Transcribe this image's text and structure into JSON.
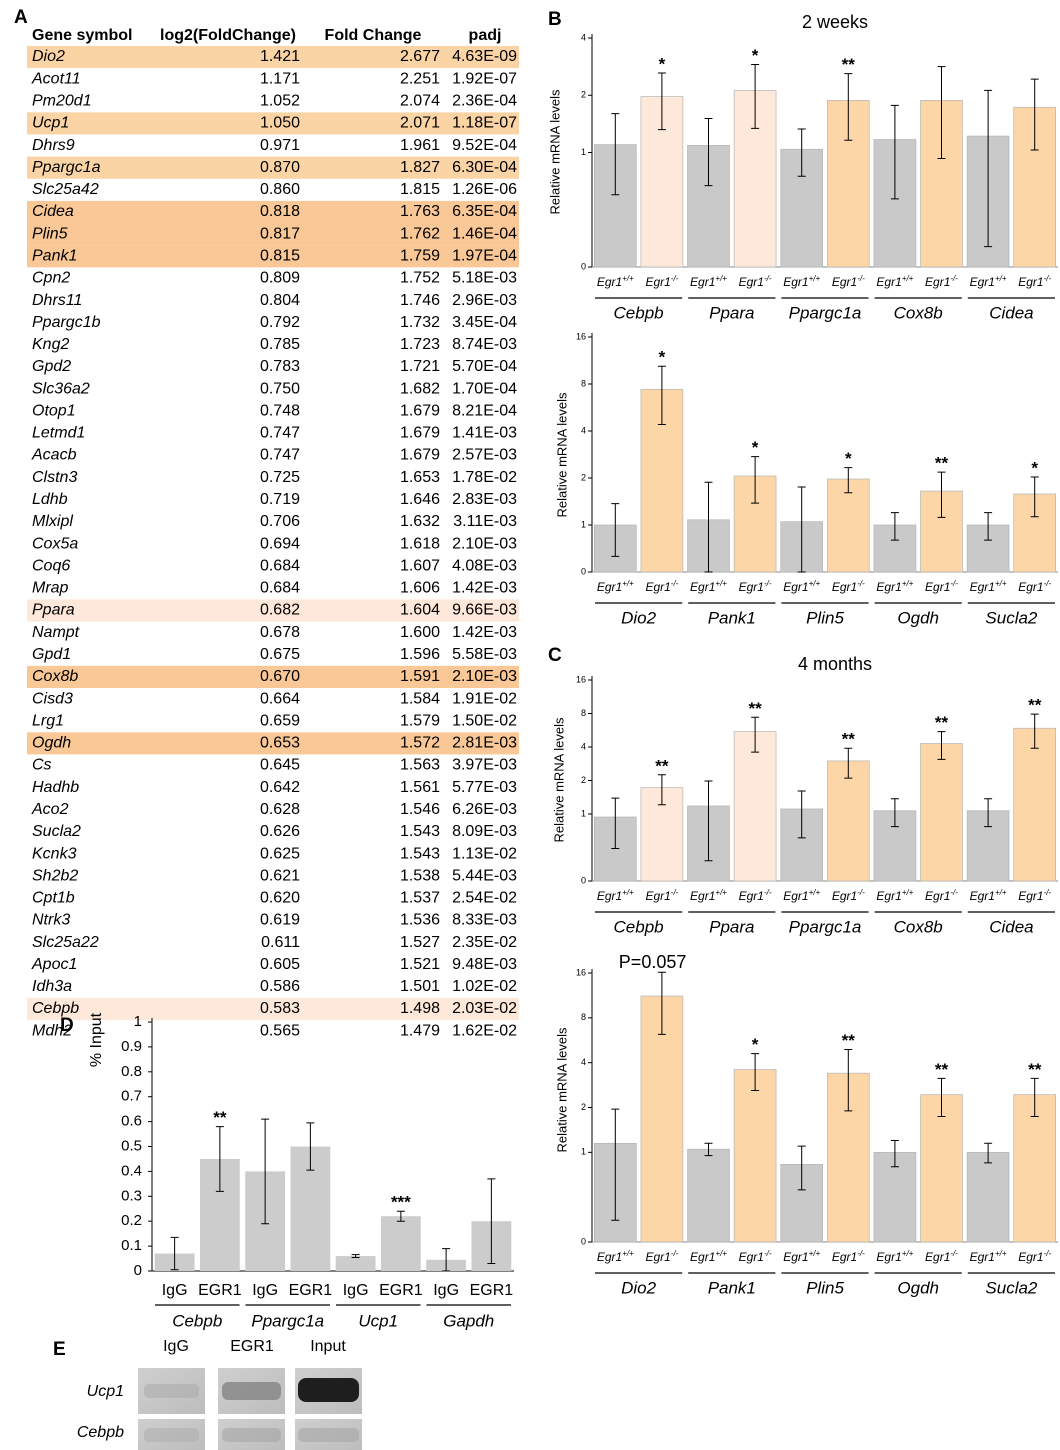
{
  "table": {
    "label": "A",
    "header": [
      "Gene symbol",
      "log2(FoldChange)",
      "Fold Change",
      "padj"
    ],
    "rows": [
      [
        "Dio2",
        "1.421",
        "2.677",
        "4.63E-09"
      ],
      [
        "Acot11",
        "1.171",
        "2.251",
        "1.92E-07"
      ],
      [
        "Pm20d1",
        "1.052",
        "2.074",
        "2.36E-04"
      ],
      [
        "Ucp1",
        "1.050",
        "2.071",
        "1.18E-07"
      ],
      [
        "Dhrs9",
        "0.971",
        "1.961",
        "9.52E-04"
      ],
      [
        "Ppargc1a",
        "0.870",
        "1.827",
        "6.30E-04"
      ],
      [
        "Slc25a42",
        "0.860",
        "1.815",
        "1.26E-06"
      ],
      [
        "Cidea",
        "0.818",
        "1.763",
        "6.35E-04"
      ],
      [
        "Plin5",
        "0.817",
        "1.762",
        "1.46E-04"
      ],
      [
        "Pank1",
        "0.815",
        "1.759",
        "1.97E-04"
      ],
      [
        "Cpn2",
        "0.809",
        "1.752",
        "5.18E-03"
      ],
      [
        "Dhrs11",
        "0.804",
        "1.746",
        "2.96E-03"
      ],
      [
        "Ppargc1b",
        "0.792",
        "1.732",
        "3.45E-04"
      ],
      [
        "Kng2",
        "0.785",
        "1.723",
        "8.74E-03"
      ],
      [
        "Gpd2",
        "0.783",
        "1.721",
        "5.70E-04"
      ],
      [
        "Slc36a2",
        "0.750",
        "1.682",
        "1.70E-04"
      ],
      [
        "Otop1",
        "0.748",
        "1.679",
        "8.21E-04"
      ],
      [
        "Letmd1",
        "0.747",
        "1.679",
        "1.41E-03"
      ],
      [
        "Acacb",
        "0.747",
        "1.679",
        "2.57E-03"
      ],
      [
        "Clstn3",
        "0.725",
        "1.653",
        "1.78E-02"
      ],
      [
        "Ldhb",
        "0.719",
        "1.646",
        "2.83E-03"
      ],
      [
        "Mlxipl",
        "0.706",
        "1.632",
        "3.11E-03"
      ],
      [
        "Cox5a",
        "0.694",
        "1.618",
        "2.10E-03"
      ],
      [
        "Coq6",
        "0.684",
        "1.607",
        "4.08E-03"
      ],
      [
        "Mrap",
        "0.684",
        "1.606",
        "1.42E-03"
      ],
      [
        "Ppara",
        "0.682",
        "1.604",
        "9.66E-03"
      ],
      [
        "Nampt",
        "0.678",
        "1.600",
        "1.42E-03"
      ],
      [
        "Gpd1",
        "0.675",
        "1.596",
        "5.58E-03"
      ],
      [
        "Cox8b",
        "0.670",
        "1.591",
        "2.10E-03"
      ],
      [
        "Cisd3",
        "0.664",
        "1.584",
        "1.91E-02"
      ],
      [
        "Lrg1",
        "0.659",
        "1.579",
        "1.50E-02"
      ],
      [
        "Ogdh",
        "0.653",
        "1.572",
        "2.81E-03"
      ],
      [
        "Cs",
        "0.645",
        "1.563",
        "3.97E-03"
      ],
      [
        "Hadhb",
        "0.642",
        "1.561",
        "5.77E-03"
      ],
      [
        "Aco2",
        "0.628",
        "1.546",
        "6.26E-03"
      ],
      [
        "Sucla2",
        "0.626",
        "1.543",
        "8.09E-03"
      ],
      [
        "Kcnk3",
        "0.625",
        "1.543",
        "1.13E-02"
      ],
      [
        "Sh2b2",
        "0.621",
        "1.538",
        "5.44E-03"
      ],
      [
        "Cpt1b",
        "0.620",
        "1.537",
        "2.54E-02"
      ],
      [
        "Ntrk3",
        "0.619",
        "1.536",
        "8.33E-03"
      ],
      [
        "Slc25a22",
        "0.611",
        "1.527",
        "2.35E-02"
      ],
      [
        "Apoc1",
        "0.605",
        "1.521",
        "9.48E-03"
      ],
      [
        "Idh3a",
        "0.586",
        "1.501",
        "1.02E-02"
      ],
      [
        "Cebpb",
        "0.583",
        "1.498",
        "2.03E-02"
      ],
      [
        "Mdh2",
        "0.565",
        "1.479",
        "1.62E-02"
      ]
    ],
    "row_fills": [
      "#fbd4a6",
      null,
      null,
      "#fbd4a6",
      null,
      "#fbd4a6",
      null,
      "#f9c896",
      "#f9c896",
      "#f9c896",
      null,
      null,
      null,
      null,
      null,
      null,
      null,
      null,
      null,
      null,
      null,
      null,
      null,
      null,
      null,
      "#fde8d9",
      null,
      null,
      "#f9c896",
      null,
      null,
      "#f9c896",
      null,
      null,
      null,
      null,
      null,
      null,
      null,
      null,
      null,
      null,
      null,
      "#fde8d9",
      null
    ]
  },
  "chart_data": [
    {
      "type": "bar",
      "panel": "B",
      "title": "2 weeks",
      "ylabel": "Relative mRNA levels",
      "log_base": 2,
      "ylim": [
        0.25,
        4
      ],
      "yticks": [
        {
          "value": 0.25,
          "label": "0"
        },
        1,
        2,
        4
      ],
      "categories": [
        {
          "name": "Egr1",
          "sup": "+/+"
        },
        {
          "name": "Egr1",
          "sup": "-/-"
        }
      ],
      "groups": [
        {
          "label": "Cebpb",
          "values": [
            1.1,
            1.97
          ],
          "errors": [
            0.5,
            0.65
          ],
          "colors": [
            "#c9c9c9",
            "#fde8d9"
          ],
          "stars": [
            null,
            "*"
          ]
        },
        {
          "label": "Ppara",
          "values": [
            1.09,
            2.12
          ],
          "errors": [
            0.42,
            0.78
          ],
          "colors": [
            "#c9c9c9",
            "#fde8d9"
          ],
          "stars": [
            null,
            "*"
          ]
        },
        {
          "label": "Ppargc1a",
          "values": [
            1.04,
            1.88
          ],
          "errors": [
            0.29,
            0.72
          ],
          "colors": [
            "#c9c9c9",
            "#fdd6a8"
          ],
          "stars": [
            null,
            "**"
          ]
        },
        {
          "label": "Cox8b",
          "values": [
            1.17,
            1.88
          ],
          "errors": [
            0.6,
            0.95
          ],
          "colors": [
            "#c9c9c9",
            "#fdd6a8"
          ],
          "stars": [
            null,
            null
          ]
        },
        {
          "label": "Cidea",
          "values": [
            1.22,
            1.73
          ],
          "errors": [
            0.9,
            0.7
          ],
          "colors": [
            "#c9c9c9",
            "#fdd6a8"
          ],
          "stars": [
            null,
            null
          ]
        }
      ]
    },
    {
      "type": "bar",
      "ylabel": "Relative mRNA levels",
      "log_base": 2,
      "ylim": [
        0.5,
        16
      ],
      "yticks": [
        {
          "value": 0.5,
          "label": "0"
        },
        1,
        2,
        4,
        8,
        16
      ],
      "categories": [
        {
          "name": "Egr1",
          "sup": "+/+"
        },
        {
          "name": "Egr1",
          "sup": "-/-"
        }
      ],
      "groups": [
        {
          "label": "Dio2",
          "values": [
            1.0,
            7.4
          ],
          "errors": [
            0.37,
            3.0
          ],
          "colors": [
            "#c9c9c9",
            "#fdd6a8"
          ],
          "stars": [
            null,
            "*"
          ]
        },
        {
          "label": "Pank1",
          "values": [
            1.08,
            2.06
          ],
          "errors": [
            0.8,
            0.68
          ],
          "colors": [
            "#c9c9c9",
            "#fdd6a8"
          ],
          "stars": [
            null,
            "*"
          ]
        },
        {
          "label": "Plin5",
          "values": [
            1.05,
            1.97
          ],
          "errors": [
            0.7,
            0.36
          ],
          "colors": [
            "#c9c9c9",
            "#fdd6a8"
          ],
          "stars": [
            null,
            "*"
          ]
        },
        {
          "label": "Ogdh",
          "values": [
            1.0,
            1.65
          ],
          "errors": [
            0.2,
            0.53
          ],
          "colors": [
            "#c9c9c9",
            "#fdd6a8"
          ],
          "stars": [
            null,
            "**"
          ]
        },
        {
          "label": "Sucla2",
          "values": [
            1.0,
            1.58
          ],
          "errors": [
            0.2,
            0.45
          ],
          "colors": [
            "#c9c9c9",
            "#fdd6a8"
          ],
          "stars": [
            null,
            "*"
          ]
        }
      ]
    },
    {
      "type": "bar",
      "panel": "C",
      "title": "4 months",
      "ylabel": "Relative mRNA levels",
      "log_base": 2,
      "ylim": [
        0.25,
        16
      ],
      "yticks": [
        {
          "value": 0.25,
          "label": "0"
        },
        1,
        2,
        4,
        8,
        16
      ],
      "categories": [
        {
          "name": "Egr1",
          "sup": "+/+"
        },
        {
          "name": "Egr1",
          "sup": "-/-"
        }
      ],
      "groups": [
        {
          "label": "Cebpb",
          "values": [
            0.94,
            1.73
          ],
          "errors": [
            0.45,
            0.52
          ],
          "colors": [
            "#c9c9c9",
            "#fde8d9"
          ],
          "stars": [
            null,
            "**"
          ]
        },
        {
          "label": "Ppara",
          "values": [
            1.18,
            5.5
          ],
          "errors": [
            0.8,
            1.9
          ],
          "colors": [
            "#c9c9c9",
            "#fde8d9"
          ],
          "stars": [
            null,
            "**"
          ]
        },
        {
          "label": "Ppargc1a",
          "values": [
            1.11,
            3.0
          ],
          "errors": [
            0.5,
            0.9
          ],
          "colors": [
            "#c9c9c9",
            "#fdd6a8"
          ],
          "stars": [
            null,
            "**"
          ]
        },
        {
          "label": "Cox8b",
          "values": [
            1.07,
            4.3
          ],
          "errors": [
            0.3,
            1.2
          ],
          "colors": [
            "#c9c9c9",
            "#fdd6a8"
          ],
          "stars": [
            null,
            "**"
          ]
        },
        {
          "label": "Cidea",
          "values": [
            1.07,
            5.9
          ],
          "errors": [
            0.3,
            2.0
          ],
          "colors": [
            "#c9c9c9",
            "#fdd6a8"
          ],
          "stars": [
            null,
            "**"
          ]
        }
      ]
    },
    {
      "type": "bar",
      "ylabel": "Relative mRNA levels",
      "log_base": 2,
      "annotation": "P=0.057",
      "ylim": [
        0.25,
        16
      ],
      "yticks": [
        {
          "value": 0.25,
          "label": "0"
        },
        1,
        2,
        4,
        8,
        16
      ],
      "categories": [
        {
          "name": "Egr1",
          "sup": "+/+"
        },
        {
          "name": "Egr1",
          "sup": "-/-"
        }
      ],
      "groups": [
        {
          "label": "Dio2",
          "values": [
            1.15,
            11.2
          ],
          "errors": [
            0.8,
            5.0
          ],
          "colors": [
            "#c9c9c9",
            "#fdd6a8"
          ],
          "stars": [
            null,
            null
          ]
        },
        {
          "label": "Pank1",
          "values": [
            1.05,
            3.6
          ],
          "errors": [
            0.1,
            1.0
          ],
          "colors": [
            "#c9c9c9",
            "#fdd6a8"
          ],
          "stars": [
            null,
            "*"
          ]
        },
        {
          "label": "Plin5",
          "values": [
            0.83,
            3.4
          ],
          "errors": [
            0.27,
            1.5
          ],
          "colors": [
            "#c9c9c9",
            "#fdd6a8"
          ],
          "stars": [
            null,
            "**"
          ]
        },
        {
          "label": "Ogdh",
          "values": [
            1.0,
            2.44
          ],
          "errors": [
            0.2,
            0.7
          ],
          "colors": [
            "#c9c9c9",
            "#fdd6a8"
          ],
          "stars": [
            null,
            "**"
          ]
        },
        {
          "label": "Sucla2",
          "values": [
            1.0,
            2.44
          ],
          "errors": [
            0.15,
            0.7
          ],
          "colors": [
            "#c9c9c9",
            "#fdd6a8"
          ],
          "stars": [
            null,
            "**"
          ]
        }
      ]
    },
    {
      "type": "bar",
      "panel": "D",
      "ylabel": "% Input",
      "ylim": [
        0,
        1
      ],
      "yticks": [
        0,
        0.1,
        0.2,
        0.3,
        0.4,
        0.5,
        0.6,
        0.7,
        0.8,
        0.9,
        1
      ],
      "categories": [
        "IgG",
        "EGR1"
      ],
      "groups": [
        {
          "label": "Cebpb",
          "values": [
            0.07,
            0.45
          ],
          "errors": [
            0.065,
            0.13
          ],
          "colors": [
            "#cccccc",
            "#cccccc"
          ],
          "stars": [
            null,
            "**"
          ]
        },
        {
          "label": "Ppargc1a",
          "values": [
            0.4,
            0.5
          ],
          "errors": [
            0.21,
            0.095
          ],
          "colors": [
            "#cccccc",
            "#cccccc"
          ],
          "stars": [
            null,
            null
          ]
        },
        {
          "label": "Ucp1",
          "values": [
            0.06,
            0.22
          ],
          "errors": [
            0.006,
            0.02
          ],
          "colors": [
            "#cccccc",
            "#cccccc"
          ],
          "stars": [
            null,
            "***"
          ]
        },
        {
          "label": "Gapdh",
          "values": [
            0.045,
            0.2
          ],
          "errors": [
            0.045,
            0.17
          ],
          "colors": [
            "#cccccc",
            "#cccccc"
          ],
          "stars": [
            null,
            null
          ]
        }
      ]
    }
  ],
  "gel": {
    "label": "E",
    "columns": [
      "IgG",
      "EGR1",
      "Input"
    ],
    "rows": [
      "Ucp1",
      "Cebpb"
    ]
  }
}
